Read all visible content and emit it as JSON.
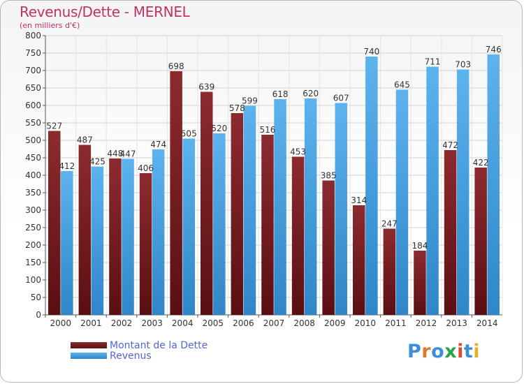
{
  "title": "Revenus/Dette - MERNEL",
  "subtitle": "(en milliers d'€)",
  "logo_text": "Proxiti",
  "colors": {
    "debt": "#7b1e22",
    "revenue": "#4aa3e2",
    "axis_text": "#333333",
    "title": "#c0306a",
    "legend_text": "#5066d8"
  },
  "legend": [
    {
      "label": "Montant de la Dette",
      "color": "#7b1e22"
    },
    {
      "label": "Revenus",
      "color": "#4aa3e2"
    }
  ],
  "chart_data": {
    "type": "bar",
    "title": "Revenus/Dette - MERNEL",
    "subtitle": "(en milliers d'€)",
    "categories": [
      "2000",
      "2001",
      "2002",
      "2003",
      "2004",
      "2005",
      "2006",
      "2007",
      "2008",
      "2009",
      "2010",
      "2011",
      "2012",
      "2013",
      "2014"
    ],
    "series": [
      {
        "name": "Montant de la Dette",
        "values": [
          527,
          487,
          448,
          406,
          698,
          639,
          578,
          516,
          453,
          385,
          314,
          247,
          184,
          472,
          422
        ]
      },
      {
        "name": "Revenus",
        "values": [
          412,
          425,
          447,
          474,
          505,
          520,
          599,
          618,
          620,
          607,
          740,
          645,
          711,
          703,
          746
        ]
      }
    ],
    "ylim": [
      0,
      800
    ],
    "yticks": [
      0,
      50,
      100,
      150,
      200,
      250,
      300,
      350,
      400,
      450,
      500,
      550,
      600,
      650,
      700,
      750,
      800
    ],
    "grid": true,
    "legend_position": "bottom-left"
  }
}
